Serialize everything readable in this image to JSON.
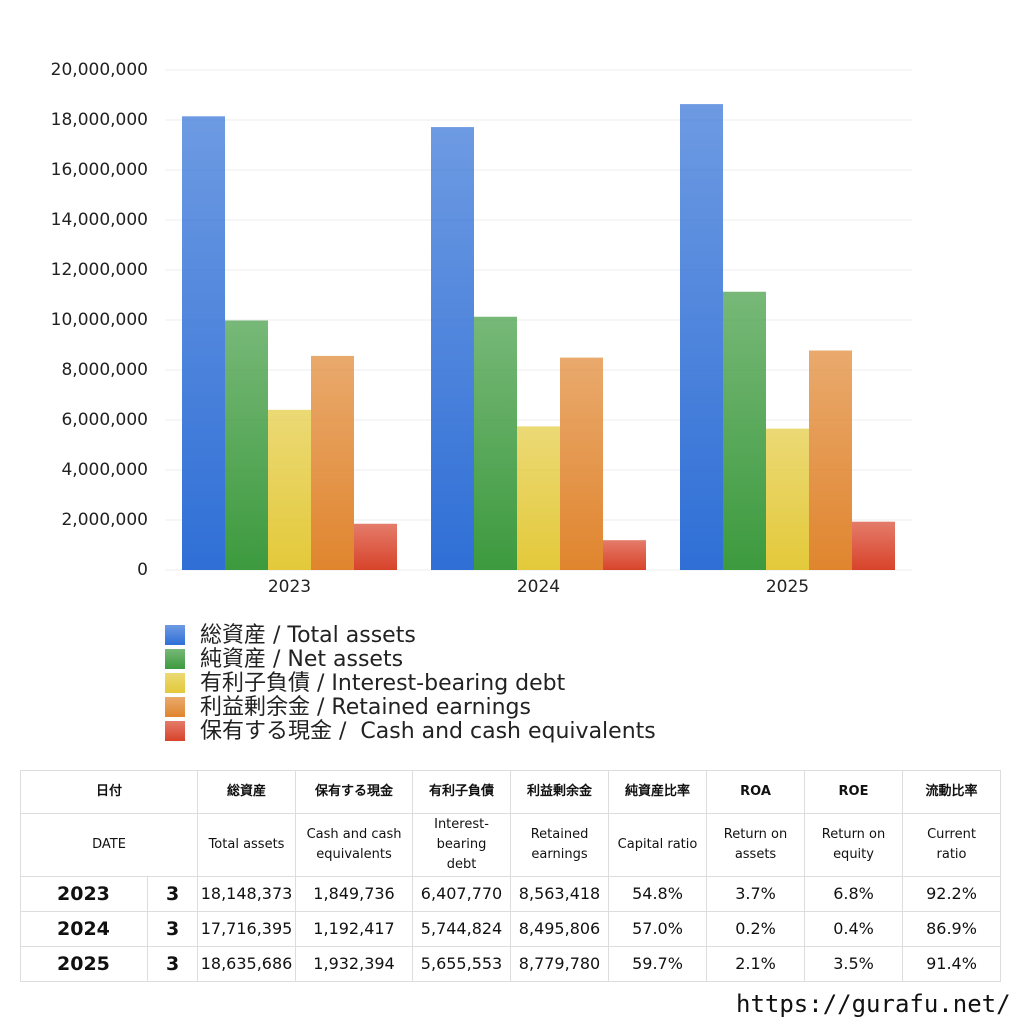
{
  "chart_data": {
    "type": "bar",
    "categories": [
      "2023",
      "2024",
      "2025"
    ],
    "series": [
      {
        "name": "総資産 / Total assets",
        "color": "#2f6fd6",
        "values": [
          18148373,
          17716395,
          18635686
        ]
      },
      {
        "name": "純資産 / Net assets",
        "color": "#3d9a3e",
        "values": [
          9980000,
          10130000,
          11130000
        ]
      },
      {
        "name": "有利子負債 / Interest-bearing debt",
        "color": "#e3c93a",
        "values": [
          6407770,
          5744824,
          5655553
        ]
      },
      {
        "name": "利益剰余金 / Retained earnings",
        "color": "#e0852e",
        "values": [
          8563418,
          8495806,
          8779780
        ]
      },
      {
        "name": "保有する現金 /  Cash and cash equivalents",
        "color": "#d8432a",
        "values": [
          1849736,
          1192417,
          1932394
        ]
      }
    ],
    "ylim": [
      0,
      20000000
    ],
    "yticks": [
      0,
      {
        "value": 2000000,
        "label": "2,000,000"
      },
      {
        "value": 4000000,
        "label": "4,000,000"
      },
      {
        "value": 6000000,
        "label": "6,000,000"
      },
      {
        "value": 8000000,
        "label": "8,000,000"
      },
      {
        "value": 10000000,
        "label": "10,000,000"
      },
      {
        "value": 12000000,
        "label": "12,000,000"
      },
      {
        "value": 14000000,
        "label": "14,000,000"
      },
      {
        "value": 16000000,
        "label": "16,000,000"
      },
      {
        "value": 18000000,
        "label": "18,000,000"
      },
      {
        "value": 20000000,
        "label": "20,000,000"
      }
    ],
    "grid": true
  },
  "table": {
    "header_row1": [
      "日付",
      "総資産",
      "保有する現金",
      "有利子負債",
      "利益剰余金",
      "純資産比率",
      "ROA",
      "ROE",
      "流動比率"
    ],
    "header_row2": [
      "DATE",
      "Total assets",
      "Cash and cash\nequivalents",
      "Interest-\nbearing\ndebt",
      "Retained\nearnings",
      "Capital ratio",
      "Return on\nassets",
      "Return on\nequity",
      "Current\nratio"
    ],
    "rows": [
      [
        "2023",
        "3",
        "18,148,373",
        "1,849,736",
        "6,407,770",
        "8,563,418",
        "54.8%",
        "3.7%",
        "6.8%",
        "92.2%"
      ],
      [
        "2024",
        "3",
        "17,716,395",
        "1,192,417",
        "5,744,824",
        "8,495,806",
        "57.0%",
        "0.2%",
        "0.4%",
        "86.9%"
      ],
      [
        "2025",
        "3",
        "18,635,686",
        "1,932,394",
        "5,655,553",
        "8,779,780",
        "59.7%",
        "2.1%",
        "3.5%",
        "91.4%"
      ]
    ]
  },
  "footer": "https://gurafu.net/"
}
